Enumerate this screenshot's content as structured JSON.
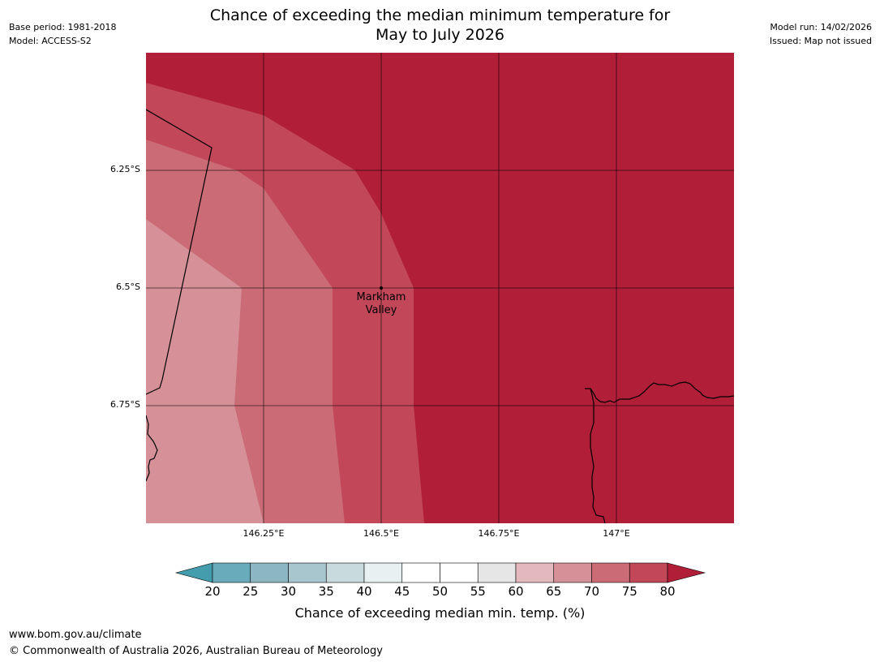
{
  "header": {
    "title_line1": "Chance of exceeding the median minimum temperature for",
    "title_line2": "May to July 2026",
    "base_period": "Base period: 1981-2018",
    "model": "Model: ACCESS-S2",
    "model_run": "Model run: 14/02/2026",
    "issued": "Issued: Map not issued"
  },
  "map": {
    "latitude_labels": [
      "6.25°S",
      "6.5°S",
      "6.75°S"
    ],
    "longitude_labels": [
      "146.25°E",
      "146.5°E",
      "146.75°E",
      "147°E"
    ],
    "place": {
      "name_line1": "Markham",
      "name_line2": "Valley",
      "lon": 146.5,
      "lat": -6.5
    },
    "region_colors": {
      "band_80_plus": "#b01e38",
      "band_75_80": "#c24758",
      "band_70_75": "#cb6b76",
      "band_65_70": "#d69198"
    }
  },
  "colorbar": {
    "title": "Chance of exceeding median min. temp. (%)",
    "ticks": [
      "20",
      "25",
      "30",
      "35",
      "40",
      "45",
      "50",
      "55",
      "60",
      "65",
      "70",
      "75",
      "80"
    ],
    "under_color": "#449dac",
    "over_color": "#b01e38",
    "segment_colors": [
      "#6aabbb",
      "#8db6c3",
      "#a8c6cd",
      "#c9dade",
      "#e8f0f2",
      "#ffffff",
      "#ffffff",
      "#e6e6e6",
      "#e4b9bd",
      "#d69198",
      "#cb6b76",
      "#c24758"
    ]
  },
  "footer": {
    "url": "www.bom.gov.au/climate",
    "copyright": "© Commonwealth of Australia 2026, Australian Bureau of Meteorology"
  }
}
